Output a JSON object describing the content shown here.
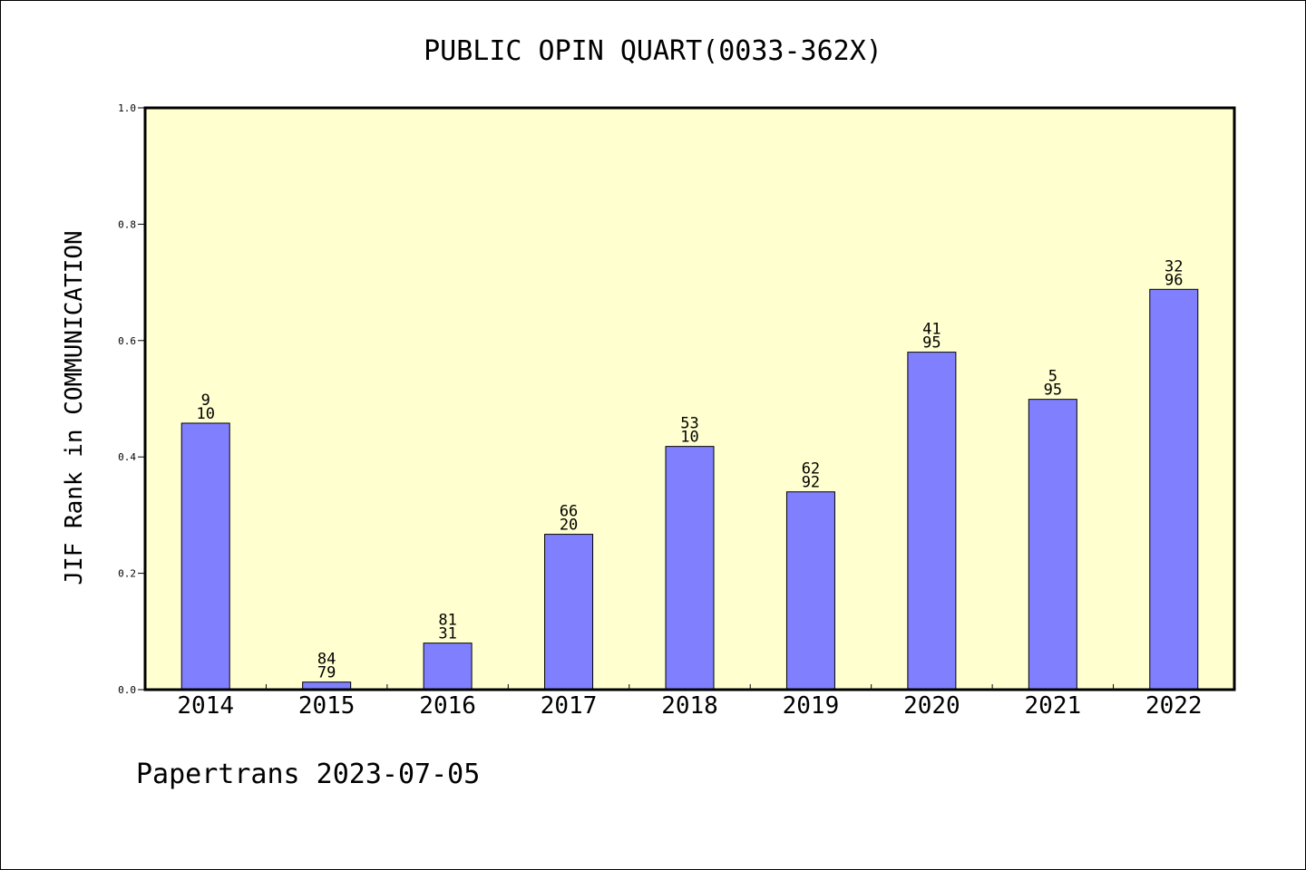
{
  "chart_data": {
    "type": "bar",
    "title": "PUBLIC OPIN QUART(0033-362X)",
    "ylabel": "JIF Rank in COMMUNICATION",
    "xlabel": "",
    "ylim": [
      0,
      1.0
    ],
    "yticks": [
      "0.0",
      "0.2",
      "0.4",
      "0.6",
      "0.8",
      "1.0"
    ],
    "categories": [
      "2014",
      "2015",
      "2016",
      "2017",
      "2018",
      "2019",
      "2020",
      "2021",
      "2022"
    ],
    "values": [
      0.458,
      0.013,
      0.08,
      0.267,
      0.418,
      0.34,
      0.58,
      0.499,
      0.688
    ],
    "label_top": [
      "9",
      "84",
      "81",
      "66",
      "53",
      "62",
      "41",
      "5",
      "32"
    ],
    "label_bottom": [
      "10",
      "79",
      "31",
      "20",
      "10",
      "92",
      "95",
      "95",
      "96"
    ],
    "bar_color": "#8080ff",
    "plot_background": "#ffffd0",
    "grid": false,
    "legend": "none"
  },
  "footer": {
    "text": "Papertrans 2023-07-05"
  }
}
